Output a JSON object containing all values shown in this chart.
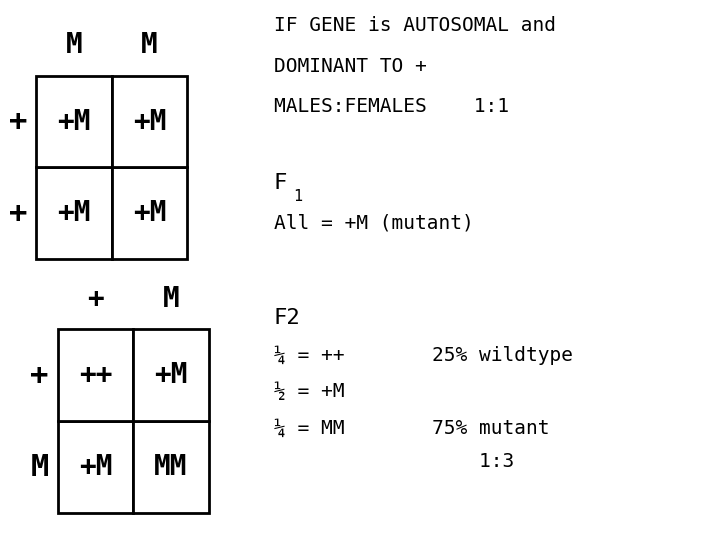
{
  "bg_color": "#ffffff",
  "table1_col_headers": [
    "M",
    "M"
  ],
  "table1_row_headers": [
    "+",
    "+"
  ],
  "table1_cells": [
    [
      "+M",
      "+M"
    ],
    [
      "+M",
      "+M"
    ]
  ],
  "table2_col_headers": [
    "+",
    "M"
  ],
  "table2_row_headers": [
    "+",
    "M"
  ],
  "table2_cells": [
    [
      "++",
      "+M"
    ],
    [
      "+M",
      "MM"
    ]
  ],
  "lines_top": [
    "IF GENE is AUTOSOMAL and",
    "DOMINANT TO +",
    "MALES:FEMALES    1:1"
  ],
  "f1_label": "F",
  "f1_sub": "1",
  "f1_line": "All = +M (mutant)",
  "f2_label": "F2",
  "frac_left": [
    "¼ = ++",
    "½ = +M",
    "¼ = MM"
  ],
  "frac_right": [
    "25% wildtype",
    "",
    "75% mutant"
  ],
  "frac_right2": [
    "",
    "",
    "    1:3"
  ],
  "fontsize_cell": 20,
  "fontsize_header": 20,
  "fontsize_row_label": 22,
  "fontsize_text": 14,
  "fontsize_f_label": 16,
  "fontsize_f_sub": 11,
  "lw": 2.0
}
